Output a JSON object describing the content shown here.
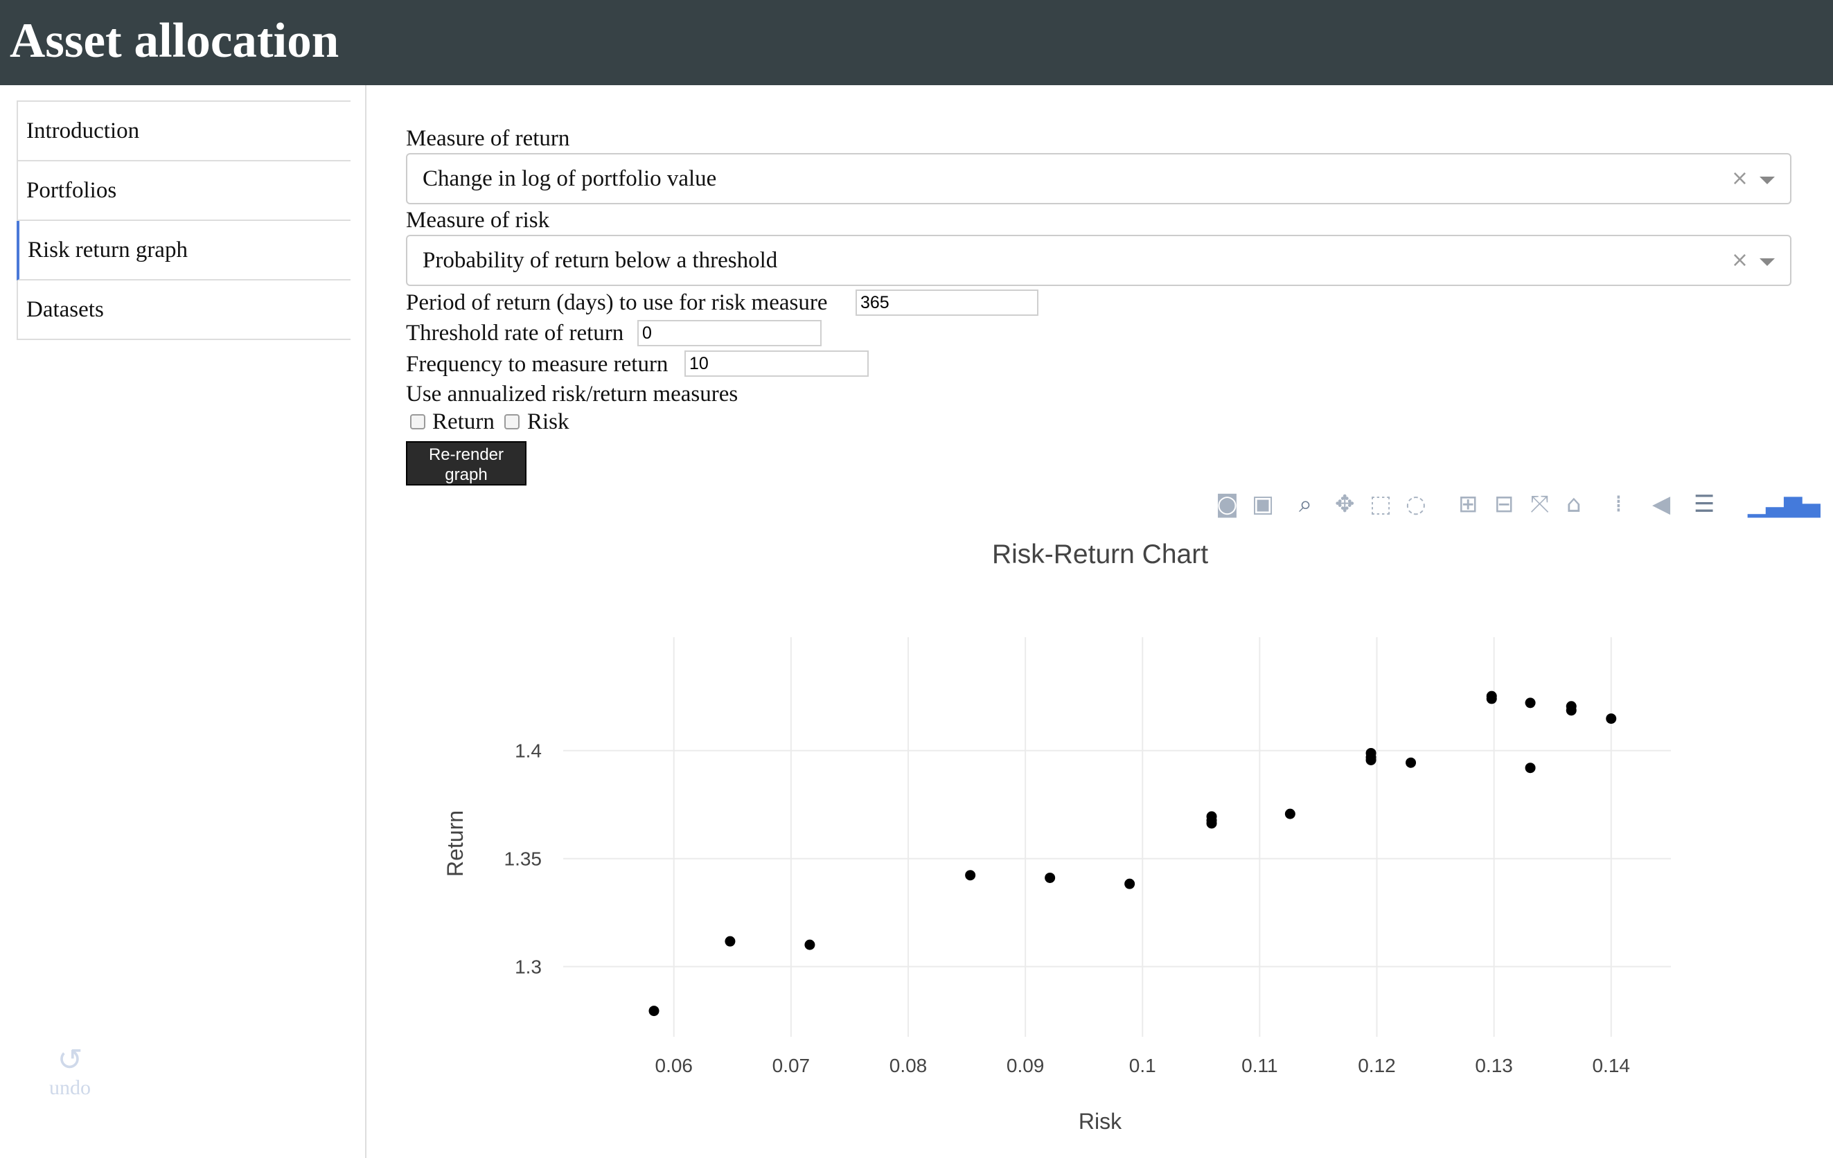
{
  "app": {
    "title": "Asset allocation"
  },
  "sidebar": {
    "items": [
      {
        "label": "Introduction"
      },
      {
        "label": "Portfolios"
      },
      {
        "label": "Risk return graph"
      },
      {
        "label": "Datasets"
      }
    ],
    "active_index": 2,
    "undo_label": "undo"
  },
  "form": {
    "return_measure_label": "Measure of return",
    "return_measure_value": "Change in log of portfolio value",
    "risk_measure_label": "Measure of risk",
    "risk_measure_value": "Probability of return below a threshold",
    "period_label": "Period of return (days) to use for risk measure",
    "period_value": "365",
    "threshold_label": "Threshold rate of return",
    "threshold_value": "0",
    "frequency_label": "Frequency to measure return",
    "frequency_value": "10",
    "annualized_label": "Use annualized risk/return measures",
    "annualized_return_label": "Return",
    "annualized_risk_label": "Risk",
    "annualized_return_checked": false,
    "annualized_risk_checked": false,
    "rerender_label": "Re-render\ngraph",
    "clear_glyph": "×"
  },
  "modebar": {
    "icons": [
      "camera-icon",
      "save-icon",
      "zoom-icon",
      "pan-icon",
      "box-select-icon",
      "lasso-icon",
      "zoom-in-icon",
      "zoom-out-icon",
      "autoscale-icon",
      "reset-axes-icon",
      "spike-lines-icon",
      "hover-closest-icon",
      "hover-compare-icon",
      "plotly-logo-icon"
    ]
  },
  "chart_data": {
    "type": "scatter",
    "title": "Risk-Return Chart",
    "xlabel": "Risk",
    "ylabel": "Return",
    "xlim": [
      0.0515,
      0.1451
    ],
    "ylim": [
      1.2675,
      1.4525
    ],
    "xticks": [
      0.06,
      0.07,
      0.08,
      0.09,
      0.1,
      0.11,
      0.12,
      0.13,
      0.14
    ],
    "xtick_labels": [
      "0.06",
      "0.07",
      "0.08",
      "0.09",
      "0.1",
      "0.11",
      "0.12",
      "0.13",
      "0.14"
    ],
    "yticks": [
      1.3,
      1.35,
      1.4
    ],
    "ytick_labels": [
      "1.3",
      "1.35",
      "1.4"
    ],
    "grid": true,
    "marker_color": "#000000",
    "points": [
      {
        "x": 0.0583,
        "y": 1.2795
      },
      {
        "x": 0.0648,
        "y": 1.3117
      },
      {
        "x": 0.0716,
        "y": 1.3101
      },
      {
        "x": 0.0853,
        "y": 1.3423
      },
      {
        "x": 0.0921,
        "y": 1.3411
      },
      {
        "x": 0.0989,
        "y": 1.3383
      },
      {
        "x": 0.1059,
        "y": 1.3695
      },
      {
        "x": 0.1059,
        "y": 1.3663
      },
      {
        "x": 0.1059,
        "y": 1.3677
      },
      {
        "x": 0.1126,
        "y": 1.3707
      },
      {
        "x": 0.1195,
        "y": 1.3988
      },
      {
        "x": 0.1195,
        "y": 1.3956
      },
      {
        "x": 0.1195,
        "y": 1.3969
      },
      {
        "x": 0.1229,
        "y": 1.3944
      },
      {
        "x": 0.1298,
        "y": 1.424
      },
      {
        "x": 0.1298,
        "y": 1.4252
      },
      {
        "x": 0.1331,
        "y": 1.4221
      },
      {
        "x": 0.1331,
        "y": 1.392
      },
      {
        "x": 0.1366,
        "y": 1.4205
      },
      {
        "x": 0.1366,
        "y": 1.4186
      },
      {
        "x": 0.14,
        "y": 1.4148
      }
    ]
  }
}
